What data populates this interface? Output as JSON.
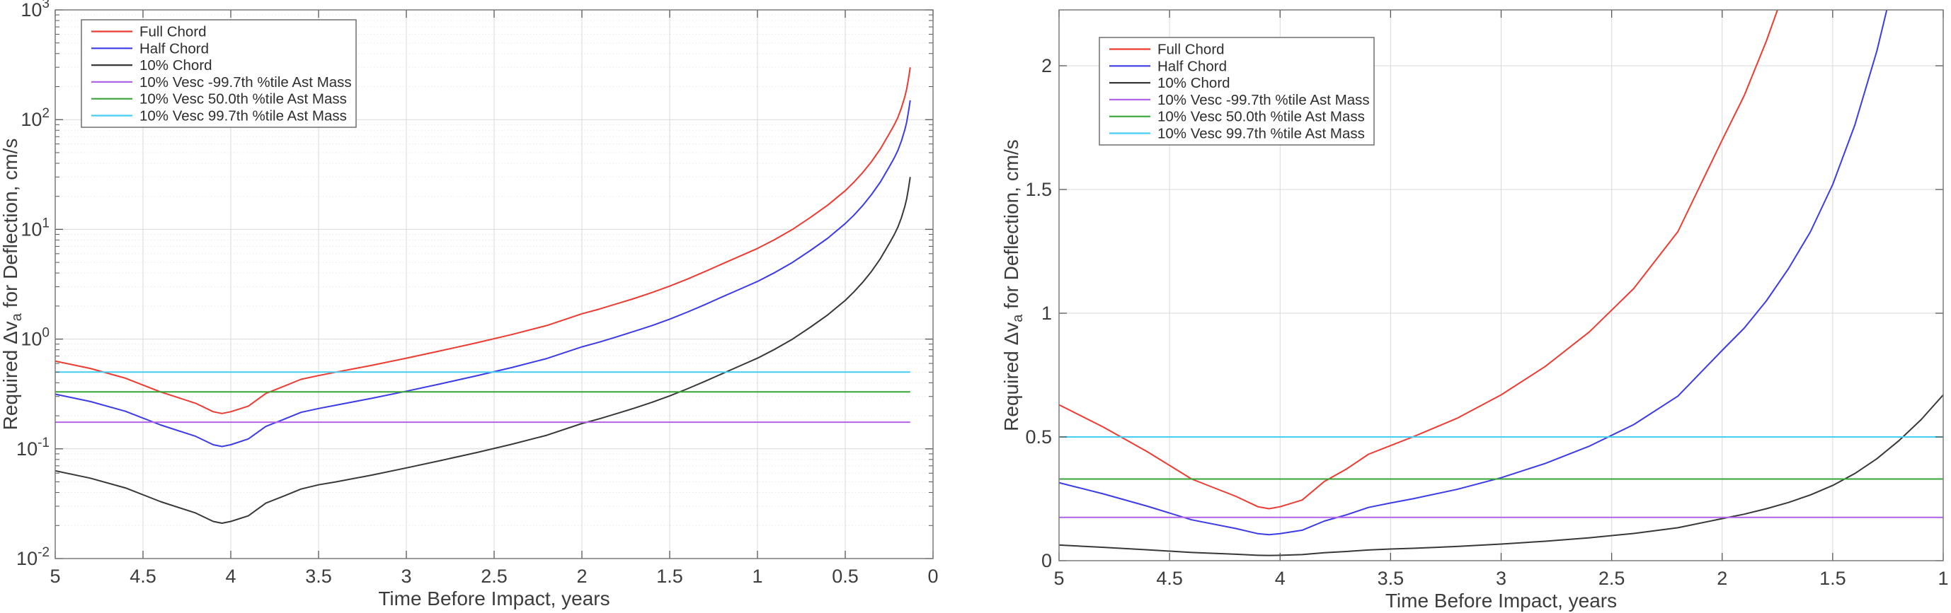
{
  "page": {
    "background": "#ffffff"
  },
  "chart_data": {
    "type": "line",
    "xlabel": "Time Before Impact, years",
    "ylabel_prefix": "Required Δv",
    "ylabel_sub": "a",
    "ylabel_suffix": " for  Deflection, cm/s",
    "samples_t": [
      5.0,
      4.8,
      4.6,
      4.4,
      4.2,
      4.1,
      4.05,
      4.0,
      3.9,
      3.8,
      3.7,
      3.6,
      3.5,
      3.4,
      3.2,
      3.0,
      2.8,
      2.6,
      2.4,
      2.2,
      2.0,
      1.9,
      1.8,
      1.7,
      1.6,
      1.5,
      1.4,
      1.3,
      1.2,
      1.1,
      1.0,
      0.9,
      0.8,
      0.7,
      0.6,
      0.5,
      0.45,
      0.4,
      0.35,
      0.3,
      0.25,
      0.22,
      0.2,
      0.18,
      0.16,
      0.15,
      0.14,
      0.13
    ],
    "series": [
      {
        "key": "full-chord",
        "name": "Full Chord",
        "color": "#ee3b31",
        "kind": "curve",
        "values": [
          0.63,
          0.54,
          0.44,
          0.33,
          0.26,
          0.218,
          0.21,
          0.218,
          0.245,
          0.32,
          0.37,
          0.43,
          0.465,
          0.5,
          0.575,
          0.67,
          0.785,
          0.925,
          1.1,
          1.33,
          1.7,
          1.88,
          2.1,
          2.35,
          2.66,
          3.04,
          3.52,
          4.12,
          4.85,
          5.7,
          6.7,
          8.1,
          10.0,
          12.8,
          16.6,
          22.5,
          27.0,
          33.0,
          41.5,
          54.0,
          74.0,
          90.0,
          105,
          128,
          163,
          190,
          235,
          300
        ]
      },
      {
        "key": "half-chord",
        "name": "Half Chord",
        "color": "#3b3bea",
        "kind": "curve",
        "values": [
          0.315,
          0.27,
          0.22,
          0.165,
          0.13,
          0.109,
          0.105,
          0.109,
          0.123,
          0.16,
          0.185,
          0.215,
          0.233,
          0.25,
          0.288,
          0.335,
          0.393,
          0.463,
          0.55,
          0.665,
          0.85,
          0.94,
          1.05,
          1.18,
          1.33,
          1.52,
          1.76,
          2.06,
          2.43,
          2.85,
          3.35,
          4.05,
          5.0,
          6.4,
          8.3,
          11.3,
          13.5,
          16.5,
          20.8,
          27.0,
          37.0,
          45.0,
          52.5,
          64.0,
          81.5,
          95.0,
          118,
          150
        ]
      },
      {
        "key": "ten-pct-chord",
        "name": "10% Chord",
        "color": "#383838",
        "kind": "curve",
        "values": [
          0.063,
          0.054,
          0.044,
          0.033,
          0.026,
          0.0218,
          0.021,
          0.0218,
          0.0245,
          0.032,
          0.037,
          0.043,
          0.047,
          0.05,
          0.0575,
          0.067,
          0.0785,
          0.0925,
          0.11,
          0.133,
          0.17,
          0.188,
          0.21,
          0.235,
          0.266,
          0.304,
          0.352,
          0.412,
          0.485,
          0.57,
          0.67,
          0.81,
          1.0,
          1.28,
          1.66,
          2.25,
          2.7,
          3.3,
          4.15,
          5.4,
          7.4,
          9.0,
          10.5,
          12.8,
          16.3,
          19.0,
          23.5,
          30.0
        ]
      },
      {
        "key": "vesc-neg997",
        "name": "10% Vesc -99.7th %tile Ast Mass",
        "color": "#b164e8",
        "kind": "hline",
        "value": 0.175
      },
      {
        "key": "vesc-500",
        "name": "10% Vesc 50.0th %tile Ast Mass",
        "color": "#37a437",
        "kind": "hline",
        "value": 0.33
      },
      {
        "key": "vesc-997",
        "name": "10% Vesc 99.7th %tile Ast Mass",
        "color": "#45cdf2",
        "kind": "hline",
        "value": 0.5
      }
    ],
    "t_end": 0.13,
    "charts": [
      {
        "id": "log",
        "name": "deflection-dv-log-chart",
        "yscale": "log",
        "xlim": [
          5,
          0
        ],
        "ylog_min": -2,
        "ylog_max": 3,
        "xticks": [
          5,
          4.5,
          4,
          3.5,
          3,
          2.5,
          2,
          1.5,
          1,
          0.5,
          0
        ],
        "xtick_labels": [
          "5",
          "4.5",
          "4",
          "3.5",
          "3",
          "2.5",
          "2",
          "1.5",
          "1",
          "0.5",
          "0"
        ],
        "ytick_exps": [
          "3",
          "2",
          "1",
          "0",
          "-1",
          "-2"
        ],
        "ytick_base": "10",
        "grid_minor": true
      },
      {
        "id": "linear",
        "name": "deflection-dv-linear-chart",
        "yscale": "linear",
        "xlim": [
          5,
          1
        ],
        "ymax": 2.2257,
        "xticks": [
          5,
          4.5,
          4,
          3.5,
          3,
          2.5,
          2,
          1.5,
          1
        ],
        "xtick_labels": [
          "5",
          "4.5",
          "4",
          "3.5",
          "3",
          "2.5",
          "2",
          "1.5",
          "1"
        ],
        "yticks": [
          0,
          0.5,
          1,
          1.5,
          2
        ],
        "ytick_labels": [
          "0",
          "0.5",
          "1",
          "1.5",
          "2"
        ],
        "grid_minor": false
      }
    ],
    "legend_position": "top-left",
    "colors": {
      "grid_major": "#d9d9d9",
      "grid_minor": "#e9e9e9",
      "axis_box": "#7a7a7a",
      "tick": "#555555",
      "label_text": "#3d3d3d",
      "legend_border": "#6e6e6e",
      "legend_text": "#2e2e2e"
    }
  }
}
